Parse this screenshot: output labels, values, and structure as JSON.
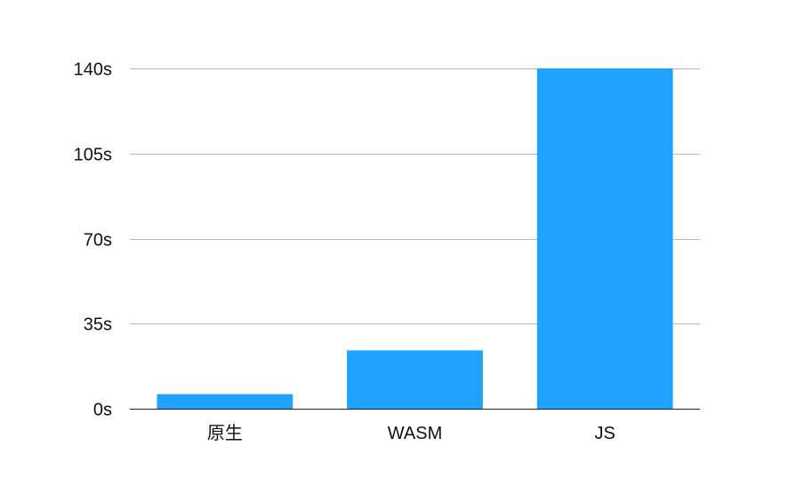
{
  "chart_data": {
    "type": "bar",
    "categories": [
      "原生",
      "WASM",
      "JS"
    ],
    "values": [
      6,
      24,
      140
    ],
    "ylim": [
      0,
      140
    ],
    "yticks": [
      0,
      35,
      70,
      105,
      140
    ],
    "ytick_labels": [
      "0s",
      "35s",
      "70s",
      "105s",
      "140s"
    ],
    "grid": true,
    "legend": "none",
    "bar_color": "#1fa3ff",
    "title": "",
    "xlabel": "",
    "ylabel": ""
  }
}
